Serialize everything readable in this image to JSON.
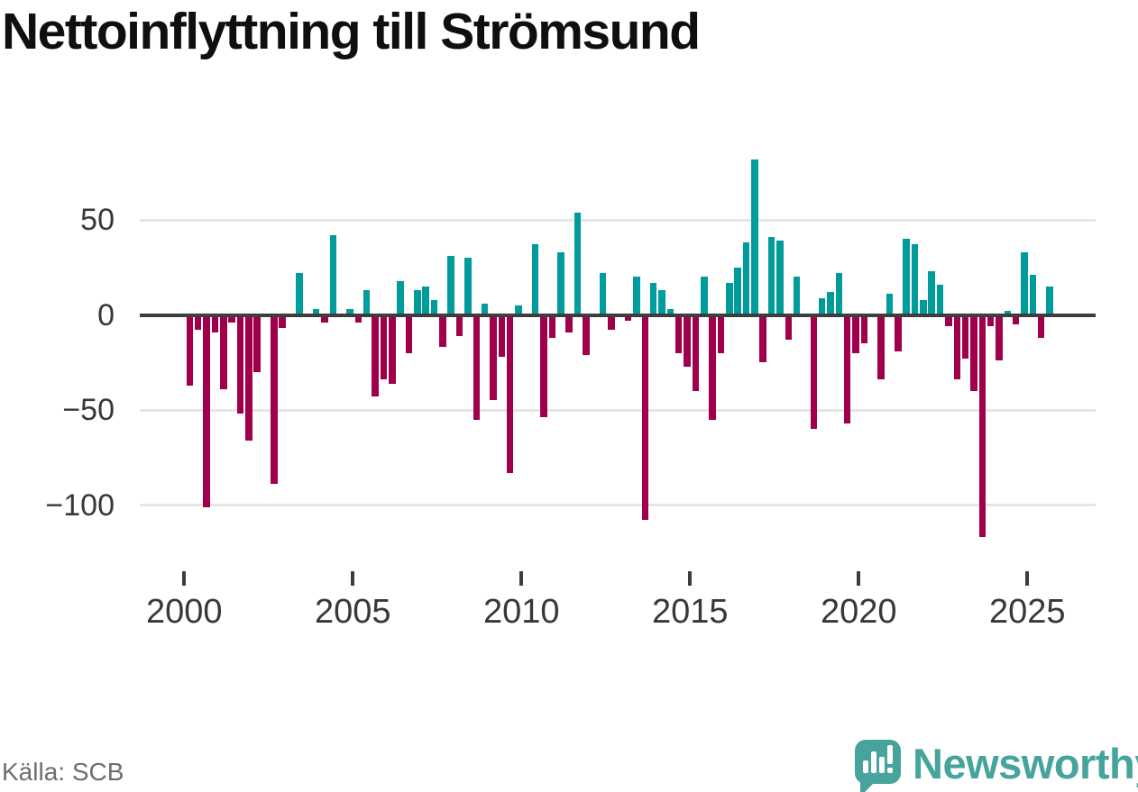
{
  "title": "Nettoinflyttning till Strömsund",
  "source": "Källa: SCB",
  "branding": {
    "name": "Newsworthy",
    "color": "#46a49d",
    "icon": "newsworthy-speech-bubble-bar-chart-icon"
  },
  "colors": {
    "positive_bar": "#009c9c",
    "negative_bar": "#a0004b",
    "zero_line": "#3d3d3d",
    "gridline": "#e6e6e6",
    "axis_text": "#383838",
    "title_text": "#0f0f0f",
    "source_text": "#6d6d75"
  },
  "chart_data": {
    "type": "bar",
    "title": "Nettoinflyttning till Strömsund",
    "xlabel": "",
    "ylabel": "",
    "grid": "horizontal",
    "legend": "none",
    "ylim": [
      -125,
      90
    ],
    "y_ticks": [
      {
        "value": 50,
        "label": "50"
      },
      {
        "value": 0,
        "label": "0"
      },
      {
        "value": -50,
        "label": "−50"
      },
      {
        "value": -100,
        "label": "−100"
      }
    ],
    "x_ticks": [
      "2000",
      "2005",
      "2010",
      "2015",
      "2020",
      "2025"
    ],
    "x": [
      "2000Q1",
      "2000Q2",
      "2000Q3",
      "2000Q4",
      "2001Q1",
      "2001Q2",
      "2001Q3",
      "2001Q4",
      "2002Q1",
      "2002Q2",
      "2002Q3",
      "2002Q4",
      "2003Q1",
      "2003Q2",
      "2003Q3",
      "2003Q4",
      "2004Q1",
      "2004Q2",
      "2004Q3",
      "2004Q4",
      "2005Q1",
      "2005Q2",
      "2005Q3",
      "2005Q4",
      "2006Q1",
      "2006Q2",
      "2006Q3",
      "2006Q4",
      "2007Q1",
      "2007Q2",
      "2007Q3",
      "2007Q4",
      "2008Q1",
      "2008Q2",
      "2008Q3",
      "2008Q4",
      "2009Q1",
      "2009Q2",
      "2009Q3",
      "2009Q4",
      "2010Q1",
      "2010Q2",
      "2010Q3",
      "2010Q4",
      "2011Q1",
      "2011Q2",
      "2011Q3",
      "2011Q4",
      "2012Q1",
      "2012Q2",
      "2012Q3",
      "2012Q4",
      "2013Q1",
      "2013Q2",
      "2013Q3",
      "2013Q4",
      "2014Q1",
      "2014Q2",
      "2014Q3",
      "2014Q4",
      "2015Q1",
      "2015Q2",
      "2015Q3",
      "2015Q4",
      "2016Q1",
      "2016Q2",
      "2016Q3",
      "2016Q4",
      "2017Q1",
      "2017Q2",
      "2017Q3",
      "2017Q4",
      "2018Q1",
      "2018Q2",
      "2018Q3",
      "2018Q4",
      "2019Q1",
      "2019Q2",
      "2019Q3",
      "2019Q4",
      "2020Q1",
      "2020Q2",
      "2020Q3",
      "2020Q4",
      "2021Q1",
      "2021Q2",
      "2021Q3",
      "2021Q4",
      "2022Q1",
      "2022Q2",
      "2022Q3",
      "2022Q4",
      "2023Q1",
      "2023Q2",
      "2023Q3",
      "2023Q4",
      "2024Q1",
      "2024Q2",
      "2024Q3",
      "2024Q4",
      "2025Q1",
      "2025Q2",
      "2025Q3"
    ],
    "values": [
      -37,
      -8,
      -101,
      -9,
      -39,
      -4,
      -52,
      -66,
      -30,
      0,
      -89,
      -7,
      0,
      22,
      0,
      3,
      -4,
      42,
      0,
      3,
      -4,
      13,
      -43,
      -34,
      -36,
      18,
      -20,
      13,
      15,
      8,
      -17,
      31,
      -11,
      30,
      -55,
      6,
      -45,
      -22,
      -83,
      5,
      0,
      37,
      -54,
      -12,
      33,
      -9,
      54,
      -21,
      0,
      22,
      -8,
      0,
      -3,
      20,
      -108,
      17,
      13,
      3,
      -20,
      -27,
      -40,
      20,
      -55,
      -20,
      17,
      25,
      38,
      82,
      -25,
      41,
      39,
      -13,
      20,
      0,
      -60,
      9,
      12,
      22,
      -57,
      -20,
      -15,
      0,
      -34,
      11,
      -19,
      40,
      37,
      8,
      23,
      16,
      -6,
      -34,
      -23,
      -40,
      -117,
      -6,
      -24,
      2,
      -5,
      33,
      21,
      -12,
      15
    ],
    "positive_color": "#009c9c",
    "negative_color": "#a0004b"
  }
}
